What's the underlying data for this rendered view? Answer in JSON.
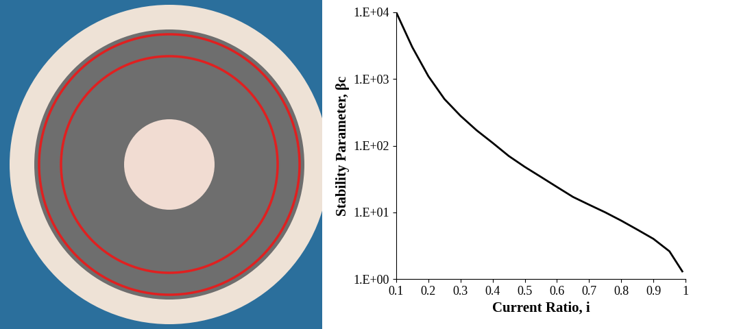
{
  "chart_data": {
    "type": "line",
    "x_label": "Current Ratio, i",
    "y_label": "Stability Parameter, βc",
    "x": [
      0.1,
      0.15,
      0.2,
      0.25,
      0.3,
      0.35,
      0.4,
      0.45,
      0.5,
      0.55,
      0.6,
      0.65,
      0.7,
      0.75,
      0.8,
      0.85,
      0.9,
      0.95,
      0.99
    ],
    "values": [
      10000,
      3000,
      1100,
      500,
      280,
      170,
      110,
      70,
      48,
      34,
      24,
      17,
      13,
      10,
      7.5,
      5.5,
      4,
      2.6,
      1.3
    ],
    "color": "#000000",
    "log": "y",
    "grid": false,
    "xlim": [
      0.1,
      1
    ],
    "xticks": [
      0.1,
      0.2,
      0.3,
      0.4,
      0.5,
      0.6,
      0.7,
      0.8,
      0.9,
      1
    ],
    "ylim": [
      1,
      10000
    ],
    "yticks": [
      {
        "value": 1,
        "label": "1.E+00"
      },
      {
        "value": 10,
        "label": "1.E+01"
      },
      {
        "value": 100,
        "label": "1.E+02"
      },
      {
        "value": 1000,
        "label": "1.E+03"
      },
      {
        "value": 10000,
        "label": "1.E+04"
      }
    ]
  }
}
